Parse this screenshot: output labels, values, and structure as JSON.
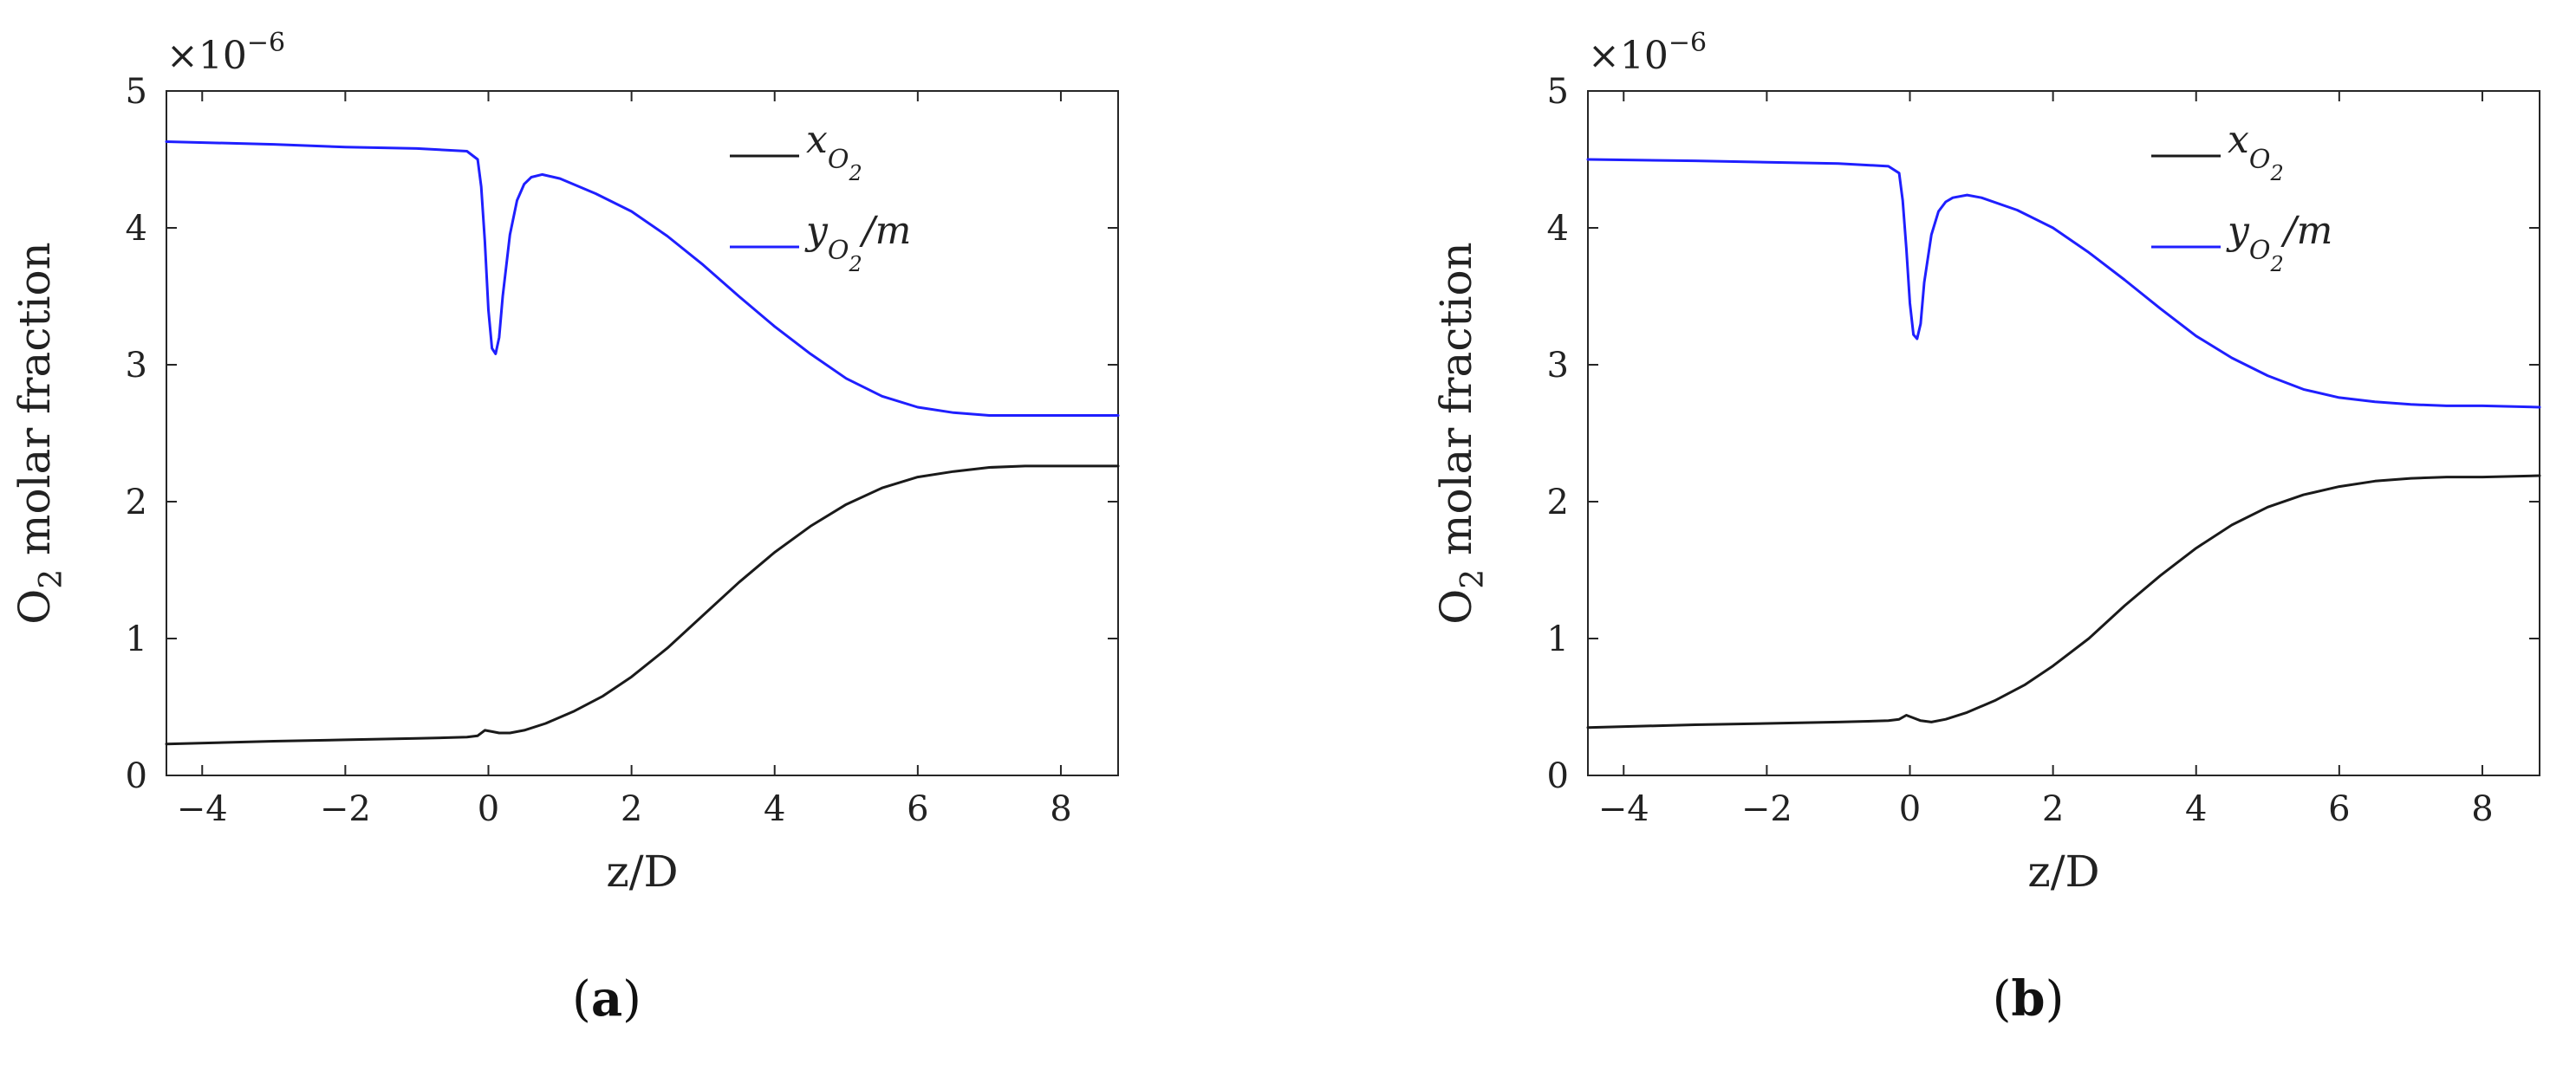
{
  "chart_data": [
    {
      "type": "line",
      "panel_label": "a",
      "xlabel": "z/D",
      "ylabel_main": "O",
      "ylabel_sub": "2",
      "ylabel_rest": " molar fraction",
      "y_multiplier_base": "×10",
      "y_multiplier_exp": "−6",
      "xlim": [
        -4.5,
        8.8
      ],
      "ylim": [
        0,
        5
      ],
      "xticks": [
        {
          "v": -4,
          "t": "−4"
        },
        {
          "v": -2,
          "t": "−2"
        },
        {
          "v": 0,
          "t": "0"
        },
        {
          "v": 2,
          "t": "2"
        },
        {
          "v": 4,
          "t": "4"
        },
        {
          "v": 6,
          "t": "6"
        },
        {
          "v": 8,
          "t": "8"
        }
      ],
      "yticks": [
        {
          "v": 0,
          "t": "0"
        },
        {
          "v": 1,
          "t": "1"
        },
        {
          "v": 2,
          "t": "2"
        },
        {
          "v": 3,
          "t": "3"
        },
        {
          "v": 4,
          "t": "4"
        },
        {
          "v": 5,
          "t": "5"
        }
      ],
      "legend_position": "top-right",
      "series": [
        {
          "legend_main": "x",
          "legend_sub": "O",
          "legend_subsub": "2",
          "legend_suffix": "",
          "color": "#1a1a1a",
          "x": [
            -4.5,
            -3,
            -2,
            -1,
            -0.3,
            -0.15,
            -0.05,
            0.05,
            0.15,
            0.3,
            0.5,
            0.8,
            1.2,
            1.6,
            2.0,
            2.5,
            3.0,
            3.5,
            4.0,
            4.5,
            5.0,
            5.5,
            6.0,
            6.5,
            7.0,
            7.5,
            8.0,
            8.8
          ],
          "y": [
            0.23,
            0.25,
            0.26,
            0.27,
            0.28,
            0.29,
            0.33,
            0.32,
            0.31,
            0.31,
            0.33,
            0.38,
            0.47,
            0.58,
            0.72,
            0.93,
            1.17,
            1.41,
            1.63,
            1.82,
            1.98,
            2.1,
            2.18,
            2.22,
            2.25,
            2.26,
            2.26,
            2.26
          ]
        },
        {
          "legend_main": "y",
          "legend_sub": "O",
          "legend_subsub": "2",
          "legend_suffix": "/m",
          "color": "#1f1fff",
          "x": [
            -4.5,
            -3,
            -2,
            -1,
            -0.3,
            -0.15,
            -0.1,
            -0.05,
            0,
            0.05,
            0.1,
            0.15,
            0.2,
            0.3,
            0.4,
            0.5,
            0.6,
            0.75,
            1.0,
            1.5,
            2.0,
            2.5,
            3.0,
            3.5,
            4.0,
            4.5,
            5.0,
            5.5,
            6.0,
            6.5,
            7.0,
            7.5,
            8.0,
            8.8
          ],
          "y": [
            4.63,
            4.61,
            4.59,
            4.58,
            4.56,
            4.5,
            4.3,
            3.9,
            3.4,
            3.12,
            3.08,
            3.2,
            3.5,
            3.95,
            4.2,
            4.32,
            4.37,
            4.39,
            4.36,
            4.25,
            4.12,
            3.94,
            3.73,
            3.5,
            3.28,
            3.08,
            2.9,
            2.77,
            2.69,
            2.65,
            2.63,
            2.63,
            2.63,
            2.63
          ]
        }
      ]
    },
    {
      "type": "line",
      "panel_label": "b",
      "xlabel": "z/D",
      "ylabel_main": "O",
      "ylabel_sub": "2",
      "ylabel_rest": " molar fraction",
      "y_multiplier_base": "×10",
      "y_multiplier_exp": "−6",
      "xlim": [
        -4.5,
        8.8
      ],
      "ylim": [
        0,
        5
      ],
      "xticks": [
        {
          "v": -4,
          "t": "−4"
        },
        {
          "v": -2,
          "t": "−2"
        },
        {
          "v": 0,
          "t": "0"
        },
        {
          "v": 2,
          "t": "2"
        },
        {
          "v": 4,
          "t": "4"
        },
        {
          "v": 6,
          "t": "6"
        },
        {
          "v": 8,
          "t": "8"
        }
      ],
      "yticks": [
        {
          "v": 0,
          "t": "0"
        },
        {
          "v": 1,
          "t": "1"
        },
        {
          "v": 2,
          "t": "2"
        },
        {
          "v": 3,
          "t": "3"
        },
        {
          "v": 4,
          "t": "4"
        },
        {
          "v": 5,
          "t": "5"
        }
      ],
      "legend_position": "top-right",
      "series": [
        {
          "legend_main": "x",
          "legend_sub": "O",
          "legend_subsub": "2",
          "legend_suffix": "",
          "color": "#1a1a1a",
          "x": [
            -4.5,
            -3,
            -2,
            -1,
            -0.3,
            -0.15,
            -0.05,
            0.05,
            0.15,
            0.3,
            0.5,
            0.8,
            1.2,
            1.6,
            2.0,
            2.5,
            3.0,
            3.5,
            4.0,
            4.5,
            5.0,
            5.5,
            6.0,
            6.5,
            7.0,
            7.5,
            8.0,
            8.8
          ],
          "y": [
            0.35,
            0.37,
            0.38,
            0.39,
            0.4,
            0.41,
            0.44,
            0.42,
            0.4,
            0.39,
            0.41,
            0.46,
            0.55,
            0.66,
            0.8,
            1.0,
            1.24,
            1.46,
            1.66,
            1.83,
            1.96,
            2.05,
            2.11,
            2.15,
            2.17,
            2.18,
            2.18,
            2.19
          ]
        },
        {
          "legend_main": "y",
          "legend_sub": "O",
          "legend_subsub": "2",
          "legend_suffix": "/m",
          "color": "#1f1fff",
          "x": [
            -4.5,
            -3,
            -2,
            -1,
            -0.3,
            -0.15,
            -0.1,
            -0.05,
            0,
            0.05,
            0.1,
            0.15,
            0.2,
            0.3,
            0.4,
            0.5,
            0.6,
            0.8,
            1.0,
            1.5,
            2.0,
            2.5,
            3.0,
            3.5,
            4.0,
            4.5,
            5.0,
            5.5,
            6.0,
            6.5,
            7.0,
            7.5,
            8.0,
            8.8
          ],
          "y": [
            4.5,
            4.49,
            4.48,
            4.47,
            4.45,
            4.4,
            4.2,
            3.85,
            3.45,
            3.22,
            3.19,
            3.3,
            3.6,
            3.95,
            4.12,
            4.19,
            4.22,
            4.24,
            4.22,
            4.13,
            4.0,
            3.82,
            3.62,
            3.41,
            3.21,
            3.05,
            2.92,
            2.82,
            2.76,
            2.73,
            2.71,
            2.7,
            2.7,
            2.69
          ]
        }
      ]
    }
  ]
}
